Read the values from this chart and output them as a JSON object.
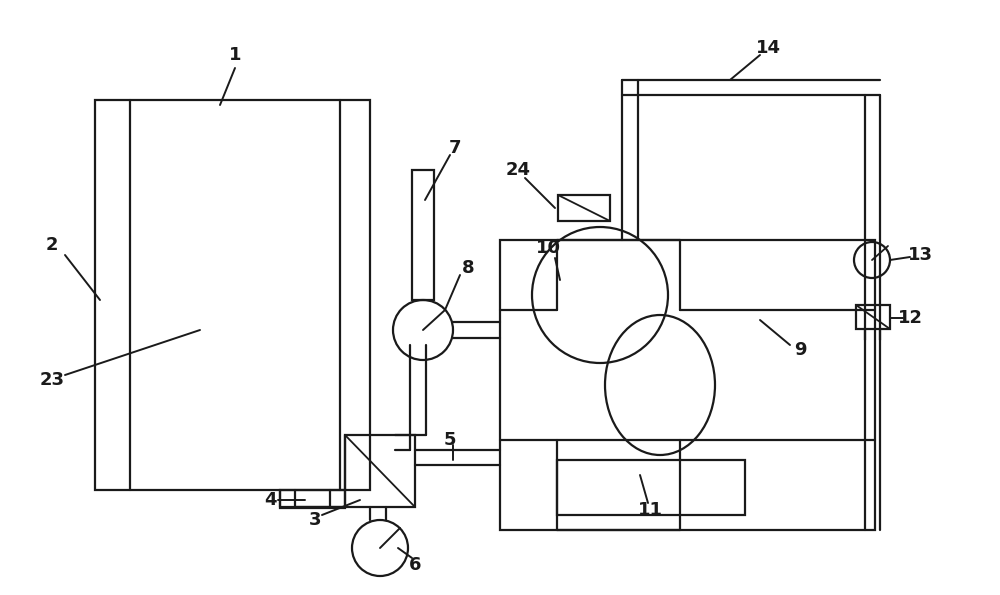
{
  "bg": "#ffffff",
  "lc": "#1a1a1a",
  "lw": 1.6,
  "fig_w": 10.0,
  "fig_h": 5.95,
  "xlim": [
    0,
    10.0
  ],
  "ylim": [
    0,
    5.95
  ]
}
